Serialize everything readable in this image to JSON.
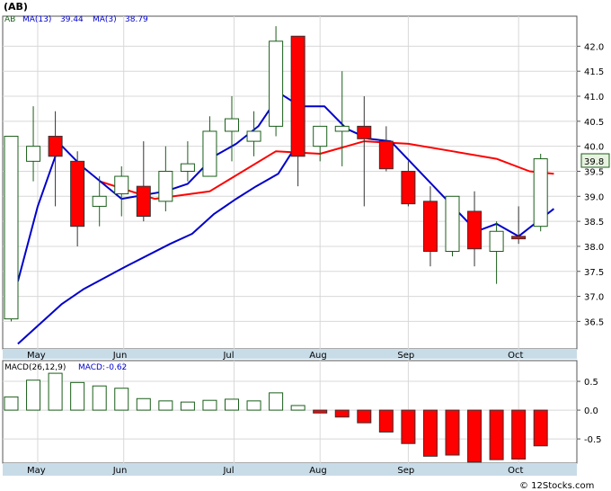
{
  "title": "(AB)",
  "footer": "© 12Stocks.com",
  "colors": {
    "up": "#1a5e1a",
    "down": "#ff0000",
    "ma_long": "#ff0000",
    "ma_short": "#0000cc",
    "grid": "#d8d8d8",
    "axis_band": "#c8dce8",
    "frame": "#555555",
    "last_label_bg": "#e8f2e0"
  },
  "chart_data": [
    {
      "type": "candlestick",
      "ticker_label": "AB",
      "legend": [
        {
          "label": "MA(13)",
          "value": "39.44"
        },
        {
          "label": "MA(3)",
          "value": "38.79"
        }
      ],
      "last_price_label": "39.8",
      "x_labels": [
        "May",
        "Jun",
        "Jul",
        "Aug",
        "Sep",
        "Oct"
      ],
      "x_label_index": [
        1.2,
        5.1,
        10.1,
        14.0,
        18.0,
        23.0
      ],
      "y_ticks": [
        "36.5",
        "37.0",
        "37.5",
        "38.0",
        "38.5",
        "39.0",
        "39.5",
        "40.0",
        "40.5",
        "41.0",
        "41.5",
        "42.0"
      ],
      "ylim": [
        35.95,
        42.6
      ],
      "grid": true,
      "candles": [
        {
          "o": 36.55,
          "h": 40.2,
          "l": 36.5,
          "c": 40.2
        },
        {
          "o": 39.7,
          "h": 40.8,
          "l": 39.3,
          "c": 40.0
        },
        {
          "o": 40.2,
          "h": 40.7,
          "l": 38.8,
          "c": 39.8
        },
        {
          "o": 39.7,
          "h": 39.9,
          "l": 38.0,
          "c": 38.4
        },
        {
          "o": 38.8,
          "h": 39.4,
          "l": 38.4,
          "c": 39.0
        },
        {
          "o": 39.05,
          "h": 39.6,
          "l": 38.6,
          "c": 39.4
        },
        {
          "o": 39.2,
          "h": 40.1,
          "l": 38.5,
          "c": 38.6
        },
        {
          "o": 38.9,
          "h": 40.0,
          "l": 38.7,
          "c": 39.5
        },
        {
          "o": 39.5,
          "h": 40.1,
          "l": 39.3,
          "c": 39.65
        },
        {
          "o": 39.4,
          "h": 40.6,
          "l": 39.4,
          "c": 40.3
        },
        {
          "o": 40.3,
          "h": 41.0,
          "l": 39.7,
          "c": 40.55
        },
        {
          "o": 40.1,
          "h": 40.7,
          "l": 39.8,
          "c": 40.3
        },
        {
          "o": 40.4,
          "h": 42.4,
          "l": 40.2,
          "c": 42.1
        },
        {
          "o": 42.2,
          "h": 42.2,
          "l": 39.2,
          "c": 39.8
        },
        {
          "o": 40.0,
          "h": 40.4,
          "l": 39.7,
          "c": 40.4
        },
        {
          "o": 40.3,
          "h": 41.5,
          "l": 39.6,
          "c": 40.4
        },
        {
          "o": 40.4,
          "h": 41.0,
          "l": 38.8,
          "c": 40.15
        },
        {
          "o": 40.1,
          "h": 40.4,
          "l": 39.5,
          "c": 39.55
        },
        {
          "o": 39.5,
          "h": 39.7,
          "l": 38.8,
          "c": 38.85
        },
        {
          "o": 38.9,
          "h": 39.2,
          "l": 37.6,
          "c": 37.9
        },
        {
          "o": 37.9,
          "h": 39.0,
          "l": 37.8,
          "c": 39.0
        },
        {
          "o": 38.7,
          "h": 39.1,
          "l": 37.6,
          "c": 37.95
        },
        {
          "o": 37.9,
          "h": 38.5,
          "l": 37.25,
          "c": 38.3
        },
        {
          "o": 38.2,
          "h": 38.8,
          "l": 38.05,
          "c": 38.15
        },
        {
          "o": 38.4,
          "h": 39.85,
          "l": 38.3,
          "c": 39.75
        }
      ],
      "series": [
        {
          "label": "MA(13)",
          "index": [
            4,
            6.5,
            9,
            12,
            14,
            16,
            18,
            20,
            22,
            23.5,
            24.6
          ],
          "values": [
            39.3,
            38.95,
            39.1,
            39.9,
            39.85,
            40.1,
            40.05,
            39.9,
            39.75,
            39.5,
            39.45
          ]
        },
        {
          "label": "MA(3)",
          "index": [
            0.3,
            1.2,
            2.2,
            3.2,
            5,
            7,
            8,
            9.2,
            10.2,
            11.2,
            12.2,
            13.1,
            14.2,
            15.2,
            16.2,
            17.2,
            21.1,
            22,
            23,
            24.6
          ],
          "values": [
            37.3,
            38.8,
            40.05,
            39.6,
            38.95,
            39.1,
            39.25,
            39.8,
            40.05,
            40.4,
            41.05,
            40.8,
            40.8,
            40.35,
            40.15,
            40.1,
            38.3,
            38.45,
            38.2,
            38.75
          ]
        },
        {
          "label": "long trend",
          "index": [
            0.3,
            2.3,
            3.3,
            5.2,
            7.2,
            8.2,
            9.2,
            10.2,
            11.1,
            12.1,
            12.9
          ],
          "values": [
            36.05,
            36.85,
            37.15,
            37.6,
            38.05,
            38.25,
            38.65,
            38.95,
            39.2,
            39.45,
            40.0
          ]
        }
      ]
    },
    {
      "type": "bar",
      "legend": [
        {
          "label": "MACD(26,12,9)",
          "value": ""
        },
        {
          "label": "MACD:",
          "value": "-0.62"
        }
      ],
      "x_labels": [
        "May",
        "Jun",
        "Jul",
        "Aug",
        "Sep",
        "Oct"
      ],
      "y_ticks": [
        "0.5",
        "0.0",
        "-0.5"
      ],
      "ylim": [
        -0.92,
        0.86
      ],
      "values": [
        0.23,
        0.52,
        0.64,
        0.48,
        0.42,
        0.38,
        0.2,
        0.16,
        0.14,
        0.17,
        0.19,
        0.16,
        0.3,
        0.08,
        -0.05,
        -0.12,
        -0.22,
        -0.38,
        -0.58,
        -0.8,
        -0.78,
        -0.9,
        -0.86,
        -0.85,
        -0.62
      ]
    }
  ]
}
